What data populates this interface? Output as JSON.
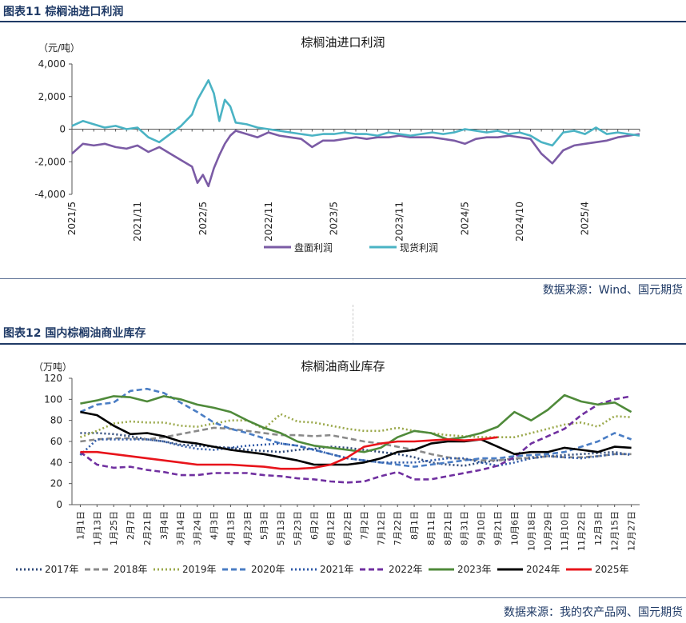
{
  "figure1": {
    "caption": "图表11  棕榈油进口利润",
    "source": "数据来源：Wind、国元期货"
  },
  "figure2": {
    "caption": "图表12  国内棕榈油商业库存",
    "source": "数据来源：我的农产品网、国元期货"
  },
  "colors": {
    "caption": "#1f3a66",
    "purple": "#7b5ba5",
    "teal": "#4ab3c4"
  },
  "chart_data": [
    {
      "type": "line",
      "title": "棕榈油进口利润",
      "ylabel": "（元/吨）",
      "ylim": [
        -4000,
        4000
      ],
      "yticks": [
        4000,
        2000,
        0,
        -2000,
        -4000
      ],
      "ytick_labels": [
        "4,000",
        "2,000",
        "0",
        "-2,000",
        "-4,000"
      ],
      "x_tick_labels": [
        "2021/5",
        "2021/11",
        "2022/5",
        "2022/11",
        "2023/5",
        "2023/11",
        "2024/5",
        "2024/10",
        "2025/4"
      ],
      "x_tick_months": [
        0,
        6,
        12,
        18,
        24,
        30,
        36,
        41,
        47
      ],
      "x_range_months": [
        0,
        52
      ],
      "legend_position": "bottom",
      "series": [
        {
          "name": "盘面利润",
          "color": "#7b5ba5",
          "x": [
            0,
            1,
            2,
            3,
            4,
            5,
            6,
            7,
            8,
            9,
            10,
            11,
            11.5,
            12,
            12.5,
            13,
            13.5,
            14,
            14.5,
            15,
            16,
            17,
            18,
            19,
            20,
            21,
            22,
            23,
            24,
            25,
            26,
            27,
            28,
            29,
            30,
            31,
            32,
            33,
            34,
            35,
            36,
            37,
            38,
            39,
            40,
            41,
            42,
            43,
            44,
            45,
            46,
            47,
            48,
            49,
            50,
            51,
            52
          ],
          "y": [
            -1500,
            -900,
            -1000,
            -900,
            -1100,
            -1200,
            -1000,
            -1400,
            -1100,
            -1500,
            -1900,
            -2300,
            -3300,
            -2800,
            -3500,
            -2400,
            -1600,
            -900,
            -400,
            -100,
            -300,
            -500,
            -200,
            -400,
            -500,
            -600,
            -1100,
            -700,
            -700,
            -600,
            -500,
            -600,
            -500,
            -500,
            -400,
            -500,
            -500,
            -500,
            -600,
            -700,
            -900,
            -600,
            -500,
            -500,
            -400,
            -500,
            -600,
            -1500,
            -2100,
            -1300,
            -1000,
            -900,
            -800,
            -700,
            -500,
            -400,
            -300
          ]
        },
        {
          "name": "现货利润",
          "color": "#4ab3c4",
          "x": [
            0,
            1,
            2,
            3,
            4,
            5,
            6,
            7,
            8,
            9,
            10,
            11,
            11.5,
            12,
            12.5,
            13,
            13.5,
            14,
            14.5,
            15,
            16,
            17,
            18,
            19,
            20,
            21,
            22,
            23,
            24,
            25,
            26,
            27,
            28,
            29,
            30,
            31,
            32,
            33,
            34,
            35,
            36,
            37,
            38,
            39,
            40,
            41,
            42,
            43,
            44,
            45,
            46,
            47,
            48,
            49,
            50,
            51,
            52
          ],
          "y": [
            200,
            500,
            300,
            100,
            200,
            0,
            100,
            -500,
            -800,
            -300,
            200,
            900,
            1800,
            2400,
            3000,
            2200,
            500,
            1800,
            1400,
            400,
            300,
            100,
            0,
            -100,
            -200,
            -300,
            -400,
            -300,
            -300,
            -200,
            -300,
            -300,
            -400,
            -200,
            -300,
            -400,
            -300,
            -200,
            -300,
            -200,
            0,
            -100,
            -200,
            -100,
            -300,
            -200,
            -400,
            -800,
            -1000,
            -200,
            -100,
            -300,
            100,
            -300,
            -200,
            -300,
            -400
          ]
        }
      ]
    },
    {
      "type": "line",
      "title": "棕榈油商业库存",
      "ylabel": "（万吨）",
      "ylim": [
        0,
        120
      ],
      "yticks": [
        0,
        20,
        40,
        60,
        80,
        100,
        120
      ],
      "x_tick_labels": [
        "1月1日",
        "1月13日",
        "1月25日",
        "2月7日",
        "2月21日",
        "3月4日",
        "3月14日",
        "3月24日",
        "4月3日",
        "4月13日",
        "4月23日",
        "5月3日",
        "5月13日",
        "5月23日",
        "6月2日",
        "6月12日",
        "6月22日",
        "7月2日",
        "7月12日",
        "7月22日",
        "8月1日",
        "8月11日",
        "8月21日",
        "8月31日",
        "9月10日",
        "9月21日",
        "10月6日",
        "10月18日",
        "10月29日",
        "11月10日",
        "11月22日",
        "12月3日",
        "12月15日",
        "12月27日"
      ],
      "legend_position": "bottom",
      "series": [
        {
          "name": "2017年",
          "color": "#2f4a7a",
          "style": "dotted",
          "y": [
            68,
            68,
            67,
            65,
            62,
            60,
            57,
            56,
            55,
            54,
            52,
            51,
            50,
            52,
            53,
            55,
            54,
            52,
            50,
            48,
            45,
            40,
            38,
            37,
            40,
            42,
            43,
            45,
            46,
            47,
            48,
            49,
            50,
            47
          ]
        },
        {
          "name": "2018年",
          "color": "#8a8a8a",
          "style": "dashed",
          "y": [
            60,
            62,
            63,
            63,
            62,
            64,
            67,
            70,
            73,
            72,
            70,
            68,
            66,
            66,
            65,
            66,
            63,
            60,
            58,
            55,
            52,
            48,
            45,
            43,
            42,
            42,
            44,
            44,
            46,
            45,
            45,
            46,
            48,
            48
          ]
        },
        {
          "name": "2019年",
          "color": "#9aa84a",
          "style": "dotted",
          "y": [
            64,
            70,
            77,
            79,
            78,
            78,
            75,
            74,
            77,
            80,
            80,
            72,
            86,
            79,
            78,
            75,
            72,
            70,
            70,
            73,
            70,
            68,
            66,
            65,
            64,
            64,
            64,
            68,
            72,
            76,
            78,
            74,
            84,
            83
          ]
        },
        {
          "name": "2020年",
          "color": "#4a7dc4",
          "style": "dashed",
          "y": [
            88,
            95,
            97,
            108,
            110,
            106,
            97,
            88,
            78,
            72,
            68,
            63,
            58,
            56,
            52,
            48,
            44,
            42,
            40,
            38,
            36,
            38,
            40,
            42,
            44,
            44,
            46,
            47,
            48,
            50,
            55,
            60,
            68,
            62
          ]
        },
        {
          "name": "2021年",
          "color": "#2f5aa8",
          "style": "dotted",
          "y": [
            47,
            62,
            62,
            62,
            62,
            60,
            56,
            53,
            52,
            54,
            56,
            57,
            58,
            56,
            52,
            48,
            44,
            42,
            40,
            40,
            40,
            42,
            44,
            44,
            40,
            37,
            40,
            44,
            46,
            45,
            44,
            46,
            48,
            48
          ]
        },
        {
          "name": "2022年",
          "color": "#7030a0",
          "style": "dashed",
          "y": [
            50,
            38,
            35,
            36,
            33,
            31,
            28,
            28,
            30,
            30,
            30,
            28,
            27,
            25,
            24,
            22,
            21,
            22,
            27,
            31,
            24,
            24,
            27,
            30,
            33,
            37,
            45,
            58,
            65,
            72,
            85,
            95,
            100,
            103
          ]
        },
        {
          "name": "2023年",
          "color": "#4f8a3a",
          "style": "solid",
          "y": [
            96,
            99,
            103,
            102,
            98,
            103,
            100,
            95,
            92,
            88,
            80,
            73,
            68,
            60,
            56,
            54,
            52,
            50,
            54,
            64,
            70,
            68,
            62,
            64,
            68,
            74,
            88,
            80,
            90,
            104,
            98,
            95,
            97,
            88
          ]
        },
        {
          "name": "2024年",
          "color": "#000000",
          "style": "solid",
          "y": [
            88,
            85,
            75,
            67,
            68,
            65,
            60,
            58,
            55,
            52,
            50,
            48,
            45,
            42,
            38,
            38,
            38,
            40,
            44,
            50,
            52,
            58,
            60,
            60,
            62,
            55,
            48,
            50,
            50,
            54,
            52,
            50,
            55,
            54
          ]
        },
        {
          "name": "2025年",
          "color": "#e8141b",
          "style": "solid",
          "y": [
            50,
            50,
            48,
            46,
            44,
            42,
            40,
            38,
            38,
            38,
            37,
            36,
            34,
            34,
            35,
            38,
            45,
            55,
            58,
            60,
            60,
            61,
            62,
            61,
            62,
            64
          ]
        }
      ]
    }
  ]
}
